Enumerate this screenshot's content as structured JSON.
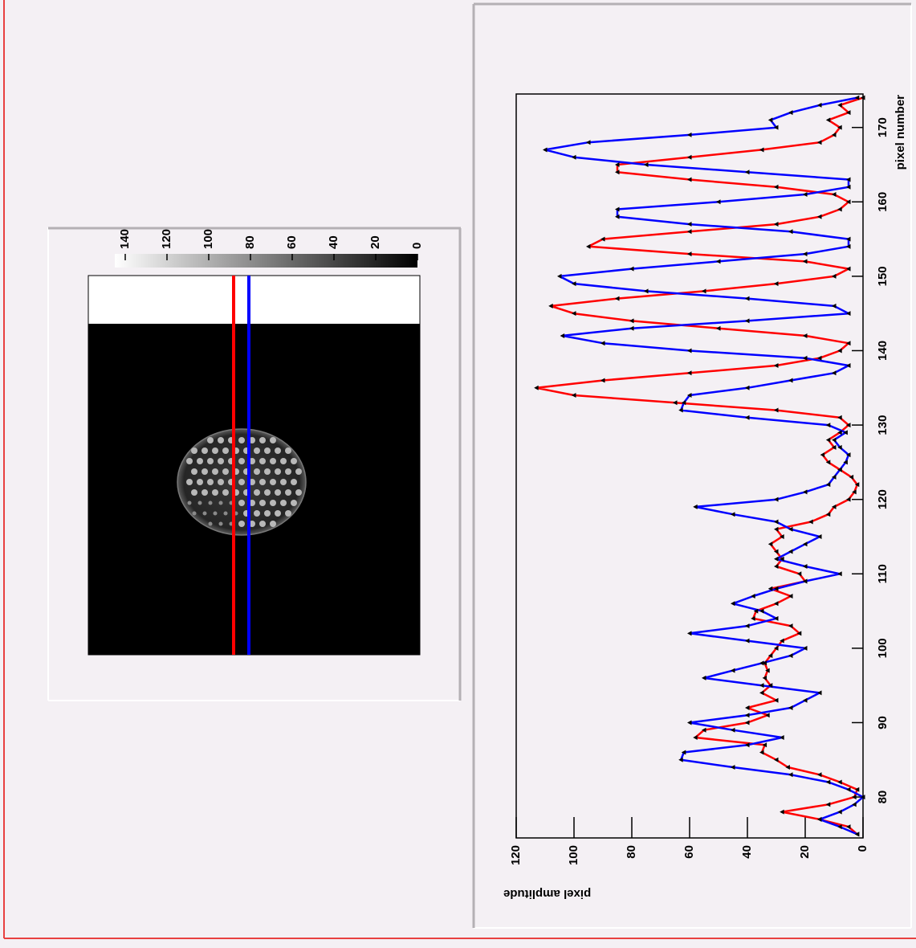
{
  "chart_data": [
    {
      "type": "image",
      "zlim": [
        0,
        145
      ],
      "zticks": [
        0,
        20,
        40,
        60,
        80,
        100,
        120,
        140
      ]
    },
    {
      "type": "line",
      "x": [
        75,
        76,
        77,
        78,
        79,
        80,
        81,
        82,
        83,
        84,
        85,
        86,
        87,
        88,
        89,
        90,
        91,
        92,
        93,
        94,
        95,
        96,
        97,
        98,
        99,
        100,
        101,
        102,
        103,
        104,
        105,
        106,
        107,
        108,
        109,
        110,
        111,
        112,
        113,
        114,
        115,
        116,
        117,
        118,
        119,
        120,
        121,
        122,
        123,
        124,
        125,
        126,
        127,
        128,
        129,
        130,
        131,
        132,
        133,
        134,
        135,
        136,
        137,
        138,
        139,
        140,
        141,
        142,
        143,
        144,
        145,
        146,
        147,
        148,
        149,
        150,
        151,
        152,
        153,
        154,
        155,
        156,
        157,
        158,
        159,
        160,
        161,
        162,
        163,
        164,
        165,
        166,
        167,
        168,
        169,
        170,
        171,
        172,
        173,
        174
      ],
      "series": [
        {
          "color": "#ff0000",
          "values": [
            2,
            5,
            15,
            28,
            12,
            3,
            2,
            8,
            15,
            26,
            30,
            35,
            34,
            58,
            55,
            40,
            33,
            40,
            30,
            35,
            32,
            34,
            33,
            34,
            32,
            30,
            28,
            22,
            25,
            38,
            37,
            30,
            25,
            32,
            20,
            22,
            30,
            28,
            30,
            32,
            28,
            30,
            18,
            12,
            10,
            5,
            3,
            2,
            4,
            8,
            12,
            14,
            10,
            12,
            8,
            5,
            8,
            30,
            65,
            100,
            113,
            90,
            60,
            30,
            15,
            8,
            5,
            20,
            50,
            80,
            100,
            108,
            85,
            55,
            30,
            10,
            5,
            20,
            60,
            95,
            90,
            60,
            30,
            15,
            8,
            5,
            10,
            30,
            60,
            85,
            85,
            60,
            35,
            15,
            10,
            8,
            12,
            5,
            8,
            0
          ]
        },
        {
          "color": "#0000ff",
          "values": [
            2,
            8,
            15,
            8,
            3,
            0,
            5,
            12,
            25,
            45,
            63,
            62,
            40,
            28,
            45,
            60,
            40,
            25,
            20,
            15,
            35,
            55,
            45,
            35,
            25,
            20,
            40,
            60,
            40,
            30,
            35,
            45,
            38,
            30,
            20,
            8,
            20,
            30,
            25,
            20,
            15,
            25,
            30,
            45,
            58,
            30,
            20,
            12,
            10,
            8,
            6,
            5,
            8,
            10,
            6,
            12,
            40,
            63,
            62,
            60,
            40,
            25,
            10,
            5,
            20,
            60,
            90,
            104,
            80,
            40,
            5,
            10,
            40,
            75,
            100,
            105,
            80,
            50,
            20,
            5,
            5,
            25,
            60,
            85,
            85,
            50,
            20,
            5,
            5,
            40,
            75,
            100,
            110,
            95,
            60,
            30,
            32,
            25,
            15,
            2
          ]
        }
      ],
      "xlim": [
        74.5,
        174.5
      ],
      "xticks": [
        80,
        90,
        100,
        110,
        120,
        130,
        140,
        150,
        160,
        170
      ],
      "ylim": [
        0,
        120
      ],
      "yticks": [
        0,
        20,
        40,
        60,
        80,
        100,
        120
      ],
      "xlabel": "pixel number",
      "ylabel": "pixel amplitude",
      "marker_color": "#000000"
    }
  ]
}
